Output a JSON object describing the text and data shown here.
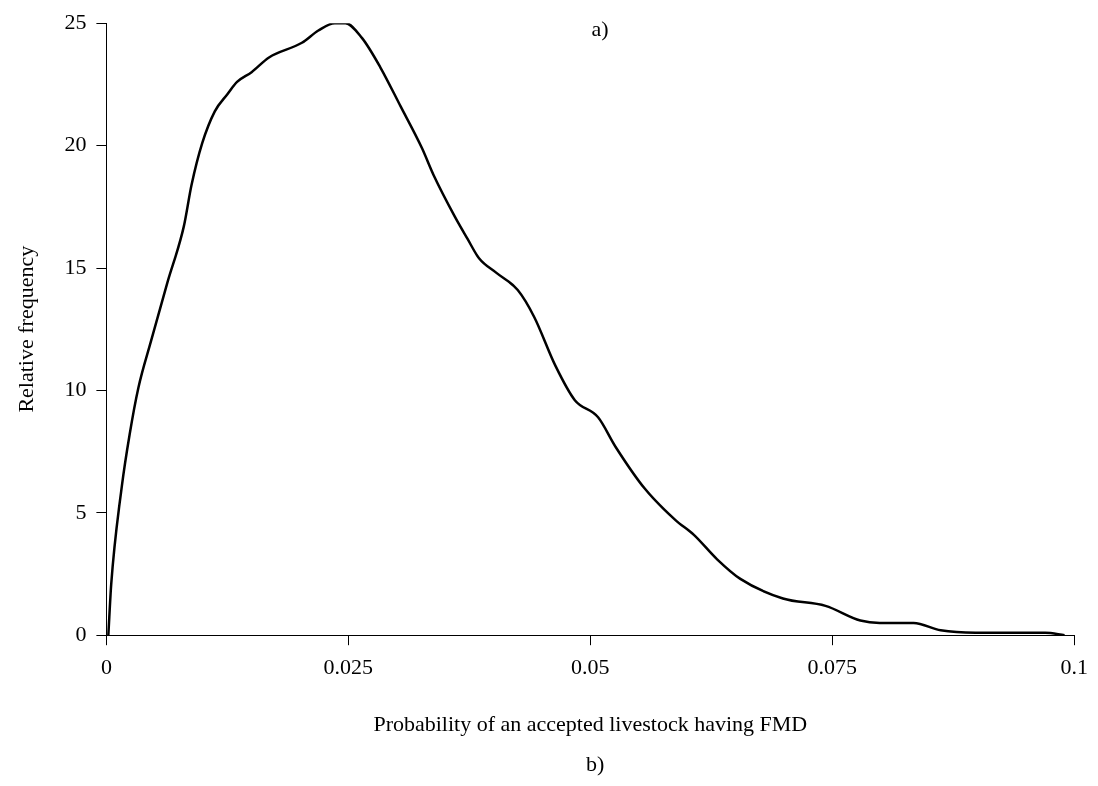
{
  "chart_data": {
    "type": "line",
    "xlabel": "Probability of an accepted livestock having FMD",
    "ylabel": "Relative frequency",
    "annotations": [
      "a)",
      "b)"
    ],
    "x": [
      0.0002,
      0.0005,
      0.0016,
      0.0024,
      0.0033,
      0.0046,
      0.0063,
      0.008,
      0.0088,
      0.0099,
      0.0112,
      0.0125,
      0.0135,
      0.015,
      0.0168,
      0.0202,
      0.0219,
      0.0236,
      0.0247,
      0.0264,
      0.0283,
      0.0304,
      0.0326,
      0.0338,
      0.036,
      0.0373,
      0.0385,
      0.0403,
      0.0425,
      0.0442,
      0.0464,
      0.0484,
      0.0508,
      0.0526,
      0.0556,
      0.0588,
      0.0607,
      0.0631,
      0.0655,
      0.0699,
      0.0743,
      0.0779,
      0.0799,
      0.0834,
      0.0862,
      0.0898,
      0.097,
      0.099
    ],
    "series": [
      {
        "color": "#000000",
        "values": [
          0,
          2.1,
          6.1,
          8.2,
          10.1,
          12.0,
          14.4,
          16.7,
          18.4,
          20.1,
          21.4,
          22.1,
          22.6,
          23.0,
          23.6,
          24.2,
          24.7,
          25.0,
          25.0,
          24.4,
          23.2,
          21.6,
          19.9,
          18.8,
          17.1,
          16.2,
          15.4,
          14.8,
          14.1,
          13.0,
          11.0,
          9.6,
          8.9,
          7.7,
          6.0,
          4.7,
          4.1,
          3.1,
          2.3,
          1.5,
          1.2,
          0.6,
          0.5,
          0.5,
          0.2,
          0.1,
          0.1,
          0
        ]
      }
    ],
    "xlim": [
      0,
      0.1
    ],
    "xticks": [
      0,
      0.025,
      0.05,
      0.075,
      0.1
    ],
    "ylim": [
      0,
      25
    ],
    "yticks": [
      0,
      5,
      10,
      15,
      20,
      25
    ],
    "grid": false,
    "legend": false,
    "marker": "none",
    "line_style": "solid"
  }
}
